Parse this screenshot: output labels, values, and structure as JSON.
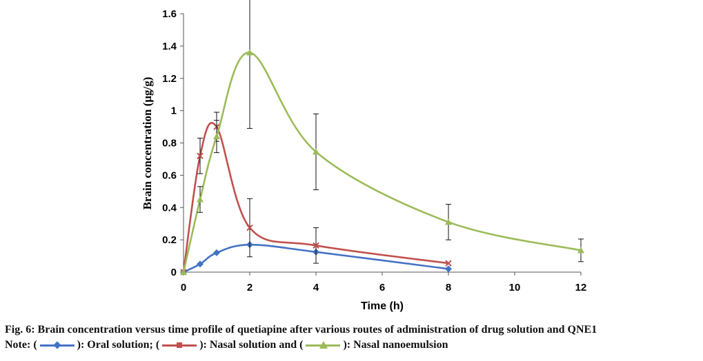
{
  "chart_data": {
    "type": "line",
    "title": "",
    "xlabel": "Time (h)",
    "ylabel": "Brain concentration (μg/g)",
    "xlim": [
      0,
      12
    ],
    "ylim": [
      0,
      1.6
    ],
    "x_ticks": [
      "0",
      "2",
      "4",
      "6",
      "8",
      "10",
      "12"
    ],
    "y_ticks": [
      "0",
      "0.2",
      "0.4",
      "0.6",
      "0.8",
      "1",
      "1.2",
      "1.4",
      "1.6"
    ],
    "grid": false,
    "smooth": true,
    "series": [
      {
        "name": "Oral solution",
        "color": "#4472c4",
        "marker": "diamond",
        "points": [
          {
            "x": 0,
            "y": 0,
            "err": 0
          },
          {
            "x": 0.5,
            "y": 0.05,
            "err": 0
          },
          {
            "x": 1,
            "y": 0.12,
            "err": 0
          },
          {
            "x": 2,
            "y": 0.17,
            "err": 0
          },
          {
            "x": 4,
            "y": 0.125,
            "err": 0
          },
          {
            "x": 8,
            "y": 0.02,
            "err": 0
          }
        ]
      },
      {
        "name": "Nasal solution",
        "color": "#c0504d",
        "marker": "x",
        "points": [
          {
            "x": 0,
            "y": 0,
            "err": 0
          },
          {
            "x": 0.5,
            "y": 0.72,
            "err": 0.11
          },
          {
            "x": 1,
            "y": 0.9,
            "err": 0.09
          },
          {
            "x": 2,
            "y": 0.275,
            "err": 0.18
          },
          {
            "x": 4,
            "y": 0.165,
            "err": 0.11
          },
          {
            "x": 8,
            "y": 0.055,
            "err": 0
          }
        ]
      },
      {
        "name": "Nasal nanoemulsion",
        "color": "#9bbb59",
        "marker": "triangle",
        "points": [
          {
            "x": 0,
            "y": 0,
            "err": 0
          },
          {
            "x": 0.5,
            "y": 0.45,
            "err": 0.08
          },
          {
            "x": 1,
            "y": 0.84,
            "err": 0.1
          },
          {
            "x": 2,
            "y": 1.36,
            "err": 0.47
          },
          {
            "x": 4,
            "y": 0.745,
            "err": 0.235
          },
          {
            "x": 8,
            "y": 0.31,
            "err": 0.11
          },
          {
            "x": 12,
            "y": 0.135,
            "err": 0.07
          }
        ]
      }
    ]
  },
  "caption": {
    "line1": "Fig. 6: Brain concentration versus time profile of quetiapine after various routes of administration of drug solution and QNE1",
    "note_prefix": "Note: (",
    "oral_text": "): Oral solution; (",
    "nasal_text": "): Nasal solution and (",
    "nano_text": "): Nasal nanoemulsion"
  }
}
